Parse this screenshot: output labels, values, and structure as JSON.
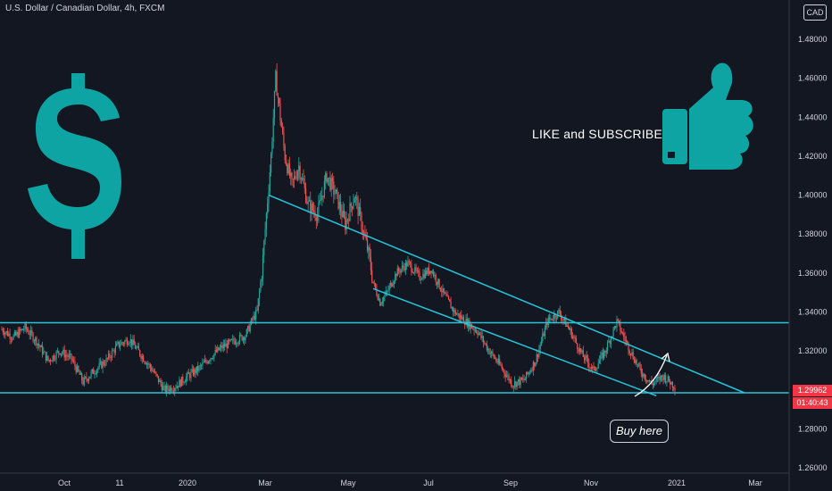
{
  "header": {
    "symbol_title": "U.S. Dollar / Canadian Dollar, 4h, FXCM",
    "currency": "CAD"
  },
  "annotations": {
    "like_text": "LIKE and SUBSCRIBE",
    "buy_label": "Buy here"
  },
  "price_tag": {
    "price": "1.29962",
    "countdown": "01:40:43"
  },
  "colors": {
    "background": "#131722",
    "teal": "#26c6da",
    "icon": "#0ea4a4",
    "up": "#26a69a",
    "down": "#ef5350",
    "tag": "#f23645"
  },
  "icons": [
    "dollar-sign-icon",
    "thumbs-up-icon"
  ],
  "chart_data": {
    "type": "candlestick",
    "title": "U.S. Dollar / Canadian Dollar, 4h, FXCM",
    "ylim": [
      1.26,
      1.5
    ],
    "y_ticks": [
      "1.26000",
      "1.28000",
      "1.30000",
      "1.32000",
      "1.34000",
      "1.36000",
      "1.38000",
      "1.40000",
      "1.42000",
      "1.44000",
      "1.46000",
      "1.48000"
    ],
    "x_tick_labels": [
      "Oct",
      "11",
      "2020",
      "Mar",
      "May",
      "Jul",
      "Sep",
      "Nov",
      "2021",
      "Mar"
    ],
    "price_path": [
      {
        "t": 0,
        "p": 1.331
      },
      {
        "t": 5,
        "p": 1.327
      },
      {
        "t": 10,
        "p": 1.332
      },
      {
        "t": 15,
        "p": 1.325
      },
      {
        "t": 20,
        "p": 1.315
      },
      {
        "t": 25,
        "p": 1.32
      },
      {
        "t": 30,
        "p": 1.316
      },
      {
        "t": 35,
        "p": 1.304
      },
      {
        "t": 40,
        "p": 1.31
      },
      {
        "t": 45,
        "p": 1.315
      },
      {
        "t": 50,
        "p": 1.323
      },
      {
        "t": 55,
        "p": 1.326
      },
      {
        "t": 60,
        "p": 1.318
      },
      {
        "t": 65,
        "p": 1.31
      },
      {
        "t": 70,
        "p": 1.3
      },
      {
        "t": 75,
        "p": 1.302
      },
      {
        "t": 80,
        "p": 1.307
      },
      {
        "t": 85,
        "p": 1.311
      },
      {
        "t": 90,
        "p": 1.317
      },
      {
        "t": 95,
        "p": 1.322
      },
      {
        "t": 100,
        "p": 1.325
      },
      {
        "t": 105,
        "p": 1.328
      },
      {
        "t": 108,
        "p": 1.336
      },
      {
        "t": 110,
        "p": 1.34
      },
      {
        "t": 112,
        "p": 1.36
      },
      {
        "t": 114,
        "p": 1.39
      },
      {
        "t": 116,
        "p": 1.42
      },
      {
        "t": 118,
        "p": 1.46
      },
      {
        "t": 120,
        "p": 1.44
      },
      {
        "t": 122,
        "p": 1.42
      },
      {
        "t": 125,
        "p": 1.405
      },
      {
        "t": 128,
        "p": 1.415
      },
      {
        "t": 132,
        "p": 1.395
      },
      {
        "t": 136,
        "p": 1.39
      },
      {
        "t": 140,
        "p": 1.41
      },
      {
        "t": 144,
        "p": 1.4
      },
      {
        "t": 148,
        "p": 1.385
      },
      {
        "t": 152,
        "p": 1.4
      },
      {
        "t": 156,
        "p": 1.38
      },
      {
        "t": 158,
        "p": 1.37
      },
      {
        "t": 160,
        "p": 1.355
      },
      {
        "t": 163,
        "p": 1.345
      },
      {
        "t": 166,
        "p": 1.35
      },
      {
        "t": 170,
        "p": 1.36
      },
      {
        "t": 175,
        "p": 1.365
      },
      {
        "t": 180,
        "p": 1.358
      },
      {
        "t": 185,
        "p": 1.362
      },
      {
        "t": 190,
        "p": 1.35
      },
      {
        "t": 195,
        "p": 1.34
      },
      {
        "t": 200,
        "p": 1.335
      },
      {
        "t": 205,
        "p": 1.33
      },
      {
        "t": 210,
        "p": 1.32
      },
      {
        "t": 215,
        "p": 1.312
      },
      {
        "t": 220,
        "p": 1.303
      },
      {
        "t": 225,
        "p": 1.305
      },
      {
        "t": 230,
        "p": 1.315
      },
      {
        "t": 235,
        "p": 1.335
      },
      {
        "t": 240,
        "p": 1.34
      },
      {
        "t": 245,
        "p": 1.33
      },
      {
        "t": 250,
        "p": 1.318
      },
      {
        "t": 255,
        "p": 1.31
      },
      {
        "t": 260,
        "p": 1.32
      },
      {
        "t": 265,
        "p": 1.335
      },
      {
        "t": 270,
        "p": 1.322
      },
      {
        "t": 275,
        "p": 1.31
      },
      {
        "t": 280,
        "p": 1.303
      },
      {
        "t": 285,
        "p": 1.307
      },
      {
        "t": 290,
        "p": 1.302
      }
    ],
    "horizontal_levels": [
      1.3345,
      1.2985
    ],
    "trendlines": [
      {
        "from": [
          115,
          1.4
        ],
        "to": [
          320,
          1.2985
        ]
      },
      {
        "from": [
          160,
          1.352
        ],
        "to": [
          282,
          1.297
        ]
      }
    ],
    "last_price": 1.29962
  }
}
